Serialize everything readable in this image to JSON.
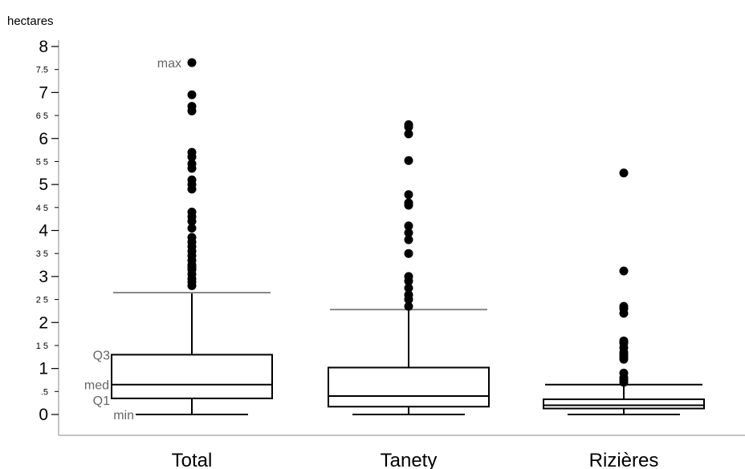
{
  "chart_data": {
    "type": "box",
    "ylabel": "hectares",
    "ylim": [
      0,
      8.3
    ],
    "grid": false,
    "major_ticks": [
      {
        "value": 0,
        "label": "0"
      },
      {
        "value": 1,
        "label": "1"
      },
      {
        "value": 2,
        "label": "2"
      },
      {
        "value": 3,
        "label": "3"
      },
      {
        "value": 4,
        "label": "4"
      },
      {
        "value": 5,
        "label": "5"
      },
      {
        "value": 6,
        "label": "6"
      },
      {
        "value": 7,
        "label": "7"
      },
      {
        "value": 8,
        "label": "8"
      }
    ],
    "minor_ticks": [
      {
        "value": 0.5,
        "label": ".5"
      },
      {
        "value": 1.5,
        "label": "1 5"
      },
      {
        "value": 2.5,
        "label": "2 5"
      },
      {
        "value": 3.5,
        "label": "3 5"
      },
      {
        "value": 4.5,
        "label": "4 5"
      },
      {
        "value": 5.5,
        "label": "5 5"
      },
      {
        "value": 6.5,
        "label": "6 5"
      },
      {
        "value": 7.5,
        "label": "7.5"
      }
    ],
    "categories": [
      "Total",
      "Tanety",
      "Rizières"
    ],
    "boxes": [
      {
        "category": "Total",
        "min": 0,
        "q1": 0.35,
        "median": 0.65,
        "q3": 1.3,
        "upper_whisker": 2.65,
        "outliers": [
          2.8,
          2.88,
          2.95,
          3.05,
          3.15,
          3.2,
          3.25,
          3.35,
          3.45,
          3.55,
          3.65,
          3.75,
          3.85,
          4.05,
          4.2,
          4.3,
          4.4,
          4.9,
          5.0,
          5.1,
          5.35,
          5.45,
          5.6,
          5.7,
          6.6,
          6.7,
          6.95,
          7.65
        ]
      },
      {
        "category": "Tanety",
        "min": 0,
        "q1": 0.17,
        "median": 0.4,
        "q3": 1.02,
        "upper_whisker": 2.28,
        "outliers": [
          2.35,
          2.5,
          2.6,
          2.75,
          2.9,
          3.0,
          3.5,
          3.8,
          3.95,
          4.1,
          4.55,
          4.6,
          4.78,
          5.52,
          6.1,
          6.25,
          6.3
        ]
      },
      {
        "category": "Rizières",
        "min": 0,
        "q1": 0.13,
        "median": 0.2,
        "q3": 0.33,
        "upper_whisker": 0.65,
        "outliers": [
          0.7,
          0.75,
          0.8,
          0.9,
          1.2,
          1.25,
          1.3,
          1.35,
          1.45,
          1.55,
          1.6,
          2.2,
          2.3,
          2.35,
          3.12,
          5.25
        ]
      }
    ],
    "annotations": {
      "max": "max",
      "q3": "Q3",
      "med": "med",
      "q1": "Q1",
      "min": "min"
    }
  }
}
